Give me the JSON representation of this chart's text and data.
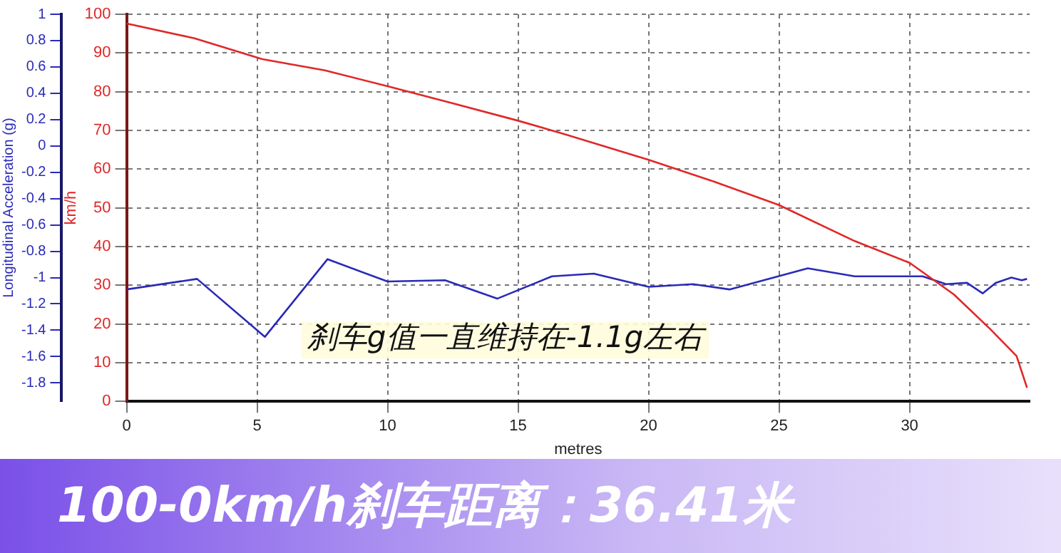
{
  "chart_data": {
    "type": "line",
    "xlabel": "metres",
    "ylabel": "km/h",
    "y2label": "Longitudinal Acceleration (g)",
    "xlim": [
      0,
      34.6
    ],
    "xticks": [
      0,
      5,
      10,
      15,
      20,
      25,
      30
    ],
    "ylim": [
      0,
      100
    ],
    "yticks": [
      0,
      10,
      20,
      30,
      40,
      50,
      60,
      70,
      80,
      90,
      100
    ],
    "y2lim": [
      -1.94,
      1
    ],
    "y2ticks": [
      -1.8,
      -1.6,
      -1.4,
      -1.2,
      -1,
      -0.8,
      -0.6,
      -0.4,
      -0.2,
      0,
      0.2,
      0.4,
      0.6,
      0.8,
      1
    ],
    "grid": true,
    "legend": false,
    "marker": "none",
    "line_style": "solid",
    "annotations": [
      "刹车g值一直维持在-1.1g左右",
      "100-0km/h刹车距离：36.41米"
    ],
    "series": [
      {
        "color": "#e02828",
        "x": [
          0,
          2.6,
          5.2,
          7.6,
          10,
          12.5,
          15,
          16.8,
          20,
          22.5,
          25,
          27.9,
          30,
          31.7,
          33.1,
          34.1,
          34.5
        ],
        "values": [
          97.6,
          93.8,
          88.4,
          85.5,
          81.4,
          77,
          72.5,
          69,
          62.4,
          56.8,
          50.7,
          41.4,
          35.8,
          27.6,
          18.6,
          11.7,
          3.5
        ]
      },
      {
        "color": "#2a2ab8",
        "axis": "y2",
        "x": [
          0,
          2.7,
          5.3,
          7.7,
          10,
          12.2,
          14.2,
          16.3,
          17.9,
          20,
          21.7,
          23.1,
          26.1,
          27.9,
          30.5,
          31.4,
          32.2,
          32.8,
          33.3,
          33.9,
          34.3,
          34.5
        ],
        "values": [
          -1.09,
          -1.01,
          -1.45,
          -0.86,
          -1.03,
          -1.02,
          -1.16,
          -0.99,
          -0.97,
          -1.07,
          -1.05,
          -1.09,
          -0.93,
          -0.99,
          -0.99,
          -1.05,
          -1.04,
          -1.12,
          -1.04,
          -1,
          -1.02,
          -1.01
        ]
      }
    ]
  }
}
